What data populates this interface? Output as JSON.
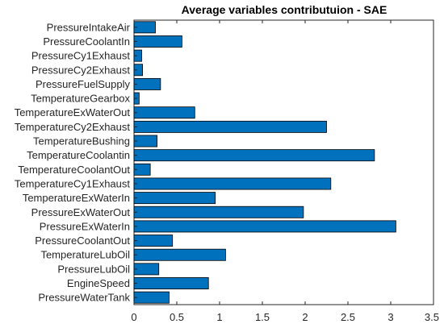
{
  "chart_data": {
    "type": "bar",
    "orientation": "horizontal",
    "title": "Average variables contributuion - SAE",
    "xlabel": "",
    "ylabel": "",
    "xlim": [
      0,
      3.5
    ],
    "xticks": [
      "0",
      "0.5",
      "1",
      "1.5",
      "2",
      "2.5",
      "3",
      "3.5"
    ],
    "grid": false,
    "bar_color": "#0072bd",
    "categories": [
      "PressureIntakeAir",
      "PressureCoolantIn",
      "PressureCy1Exhaust",
      "PressureCy2Exhaust",
      "PressureFuelSupply",
      "TemperatureGearbox",
      "TemperatureExWaterOut",
      "TemperatureCy2Exhaust",
      "TemperatureBushing",
      "TemperatureCoolantin",
      "TemperatureCoolantOut",
      "TemperatureCy1Exhaust",
      "TemperatureExWaterIn",
      "PressureExWaterOut",
      "PressureExWaterIn",
      "PressureCoolantOut",
      "TemperatureLubOil",
      "PressureLubOil",
      "EngineSpeed",
      "PressureWaterTank"
    ],
    "values": [
      0.25,
      0.56,
      0.09,
      0.1,
      0.31,
      0.06,
      0.71,
      2.25,
      0.27,
      2.81,
      0.19,
      2.3,
      0.95,
      1.98,
      3.06,
      0.45,
      1.07,
      0.29,
      0.87,
      0.41
    ]
  }
}
